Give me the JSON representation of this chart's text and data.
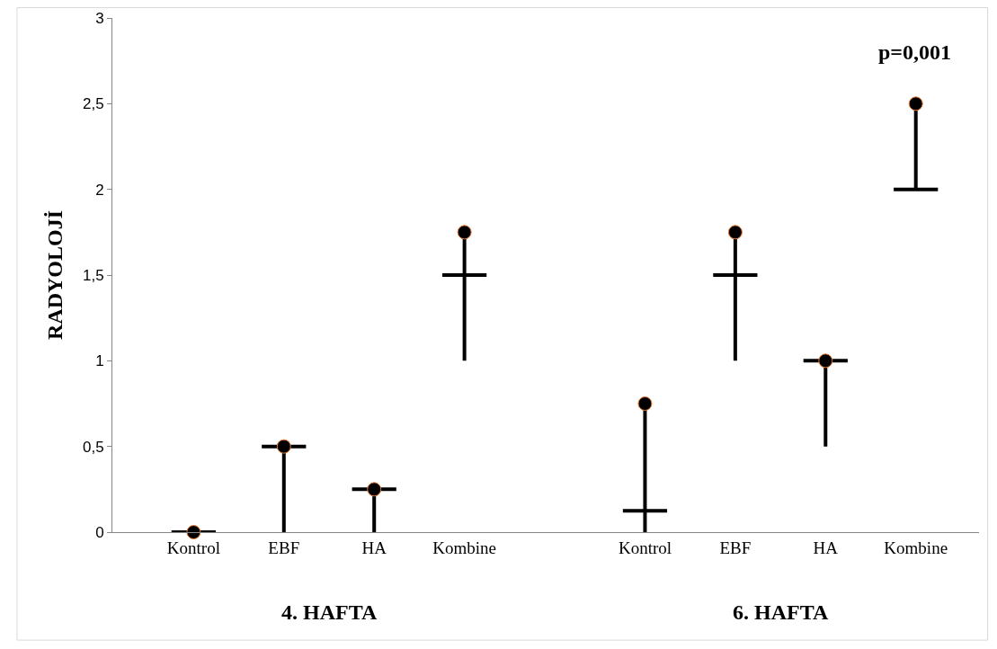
{
  "chart_data": {
    "type": "candlestick",
    "ylabel": "RADYOLOJİ",
    "annotations": [
      "p=0,001",
      "4. HAFTA",
      "6. HAFTA"
    ],
    "categories": [
      "Kontrol",
      "EBF",
      "HA",
      "Kombine",
      null,
      "Kontrol",
      "EBF",
      "HA",
      "Kombine"
    ],
    "color": "#000000",
    "ohlc": [
      [
        0,
        0,
        0,
        0
      ],
      [
        0.5,
        0.5,
        0,
        0.5
      ],
      [
        0.25,
        0.25,
        0,
        0.25
      ],
      [
        1.5,
        1.75,
        1,
        1.5
      ],
      null,
      [
        0.125,
        0.75,
        0,
        0.125
      ],
      [
        1.5,
        1.75,
        1,
        1.5
      ],
      [
        1,
        1,
        0.5,
        1
      ],
      [
        2,
        2.5,
        2,
        2
      ]
    ],
    "series": [
      {
        "type": "scatter",
        "color": "#000000",
        "marker": "circle",
        "values": [
          0,
          0.5,
          0.25,
          1.75,
          null,
          0.75,
          1.75,
          1,
          2.5
        ]
      }
    ],
    "ylim": [
      0,
      3
    ],
    "yticks": [
      0,
      {
        "value": 0.5,
        "label": "0,5"
      },
      1,
      {
        "value": 1.5,
        "label": "1,5"
      },
      2,
      {
        "value": 2.5,
        "label": "2,5"
      },
      3
    ]
  }
}
